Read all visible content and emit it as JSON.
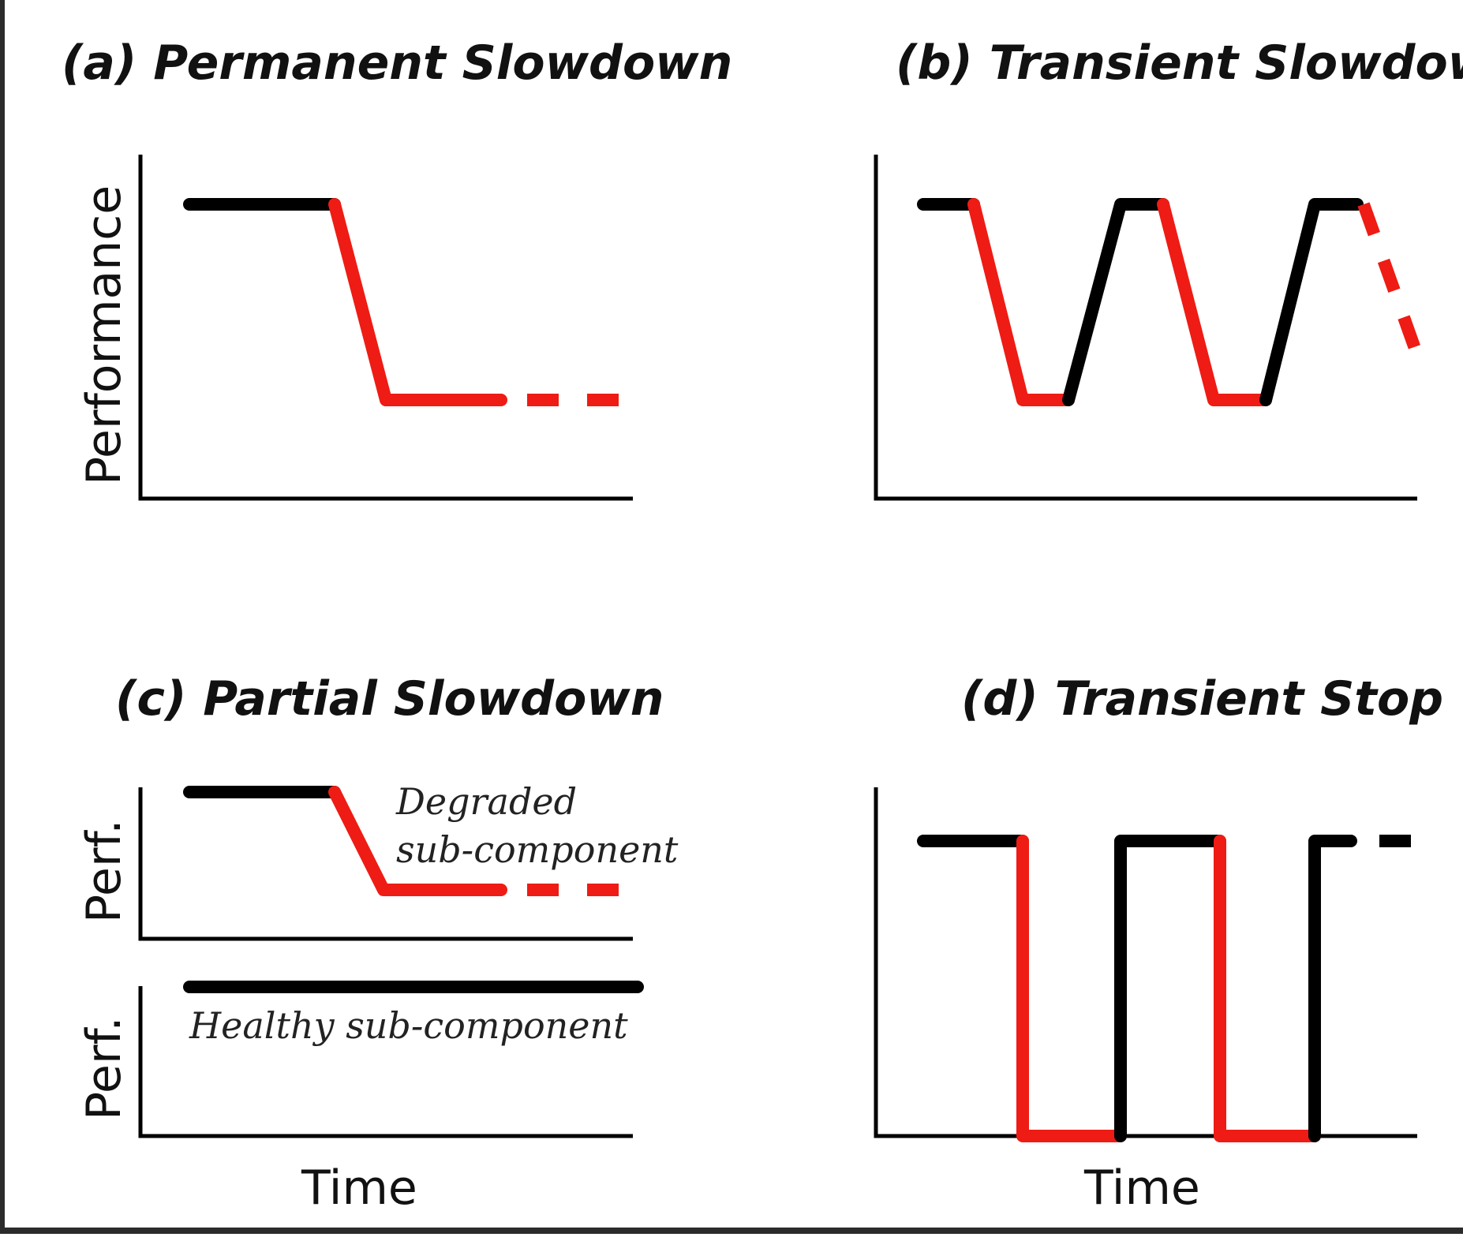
{
  "colors": {
    "normal": "#000000",
    "slowdown": "#ee1c14"
  },
  "panels": {
    "a": {
      "title": "(a) Permanent Slowdown",
      "ylabel": "Performance"
    },
    "b": {
      "title": "(b) Transient Slowdown"
    },
    "c": {
      "title": "(c) Partial Slowdown",
      "ylabel_top": "Perf.",
      "ylabel_bottom": "Perf.",
      "xlabel": "Time",
      "annotation_degraded_line1": "Degraded",
      "annotation_degraded_line2": "sub-component",
      "annotation_healthy": "Healthy sub-component"
    },
    "d": {
      "title": "(d) Transient Stop",
      "xlabel": "Time"
    }
  }
}
